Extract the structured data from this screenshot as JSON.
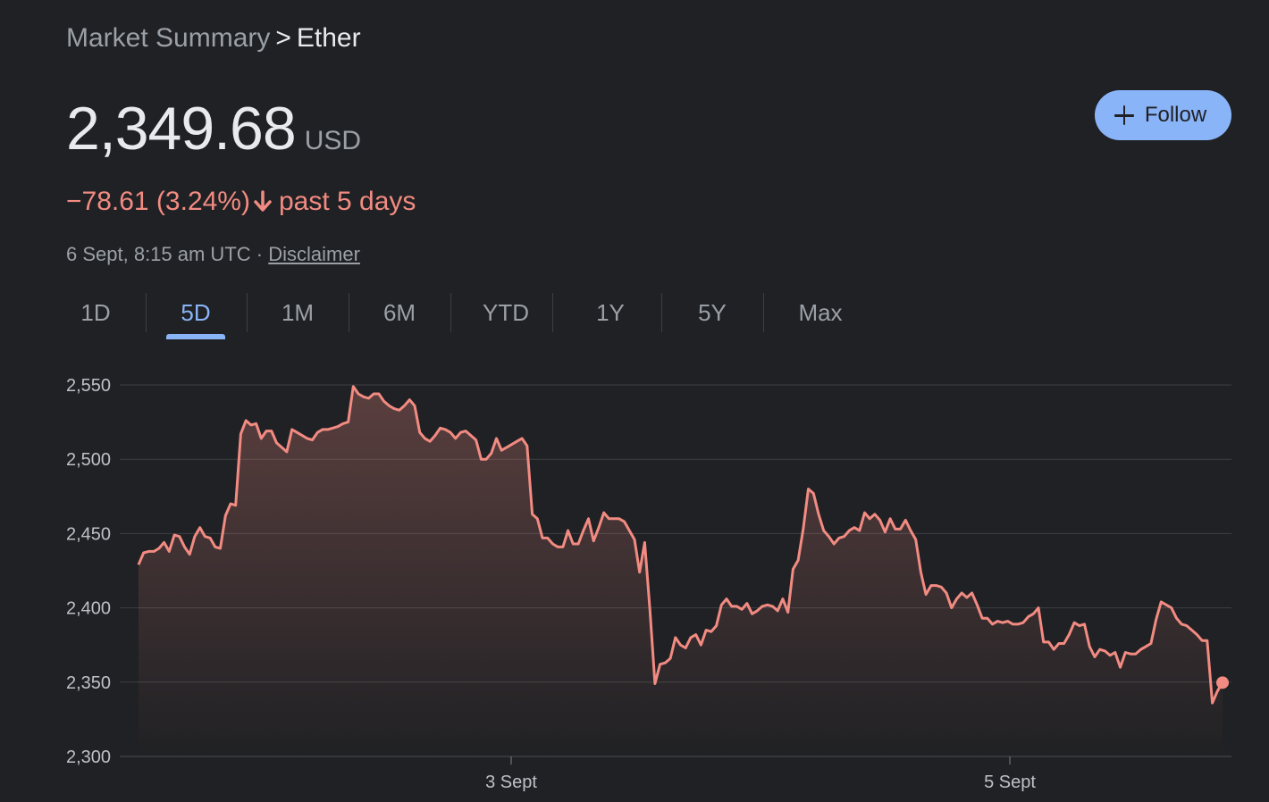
{
  "breadcrumb": {
    "parent": "Market Summary",
    "separator": ">",
    "current": "Ether"
  },
  "quote": {
    "price": "2,349.68",
    "currency": "USD",
    "change": "−78.61 (3.24%)",
    "period": "past 5 days",
    "timestamp": "6 Sept, 8:15 am UTC",
    "dot_separator": "·",
    "disclaimer": "Disclaimer"
  },
  "follow_button": {
    "label": "Follow",
    "icon": "plus-icon"
  },
  "range_tabs": [
    {
      "label": "1D",
      "active": false
    },
    {
      "label": "5D",
      "active": true
    },
    {
      "label": "1M",
      "active": false
    },
    {
      "label": "6M",
      "active": false
    },
    {
      "label": "YTD",
      "active": false
    },
    {
      "label": "1Y",
      "active": false
    },
    {
      "label": "5Y",
      "active": false
    },
    {
      "label": "Max",
      "active": false
    }
  ],
  "colors": {
    "background": "#202124",
    "line_down": "#f28b82",
    "accent": "#8ab4f8",
    "grid": "#3c4043"
  },
  "chart_data": {
    "type": "area",
    "title": "",
    "xlabel": "",
    "ylabel": "",
    "ylim": [
      2300,
      2550
    ],
    "y_ticks": [
      2550,
      2500,
      2450,
      2400,
      2350,
      2300
    ],
    "y_tick_labels": [
      "2,550",
      "2,500",
      "2,450",
      "2,400",
      "2,350",
      "2,300"
    ],
    "x_range": [
      "2 Sept 08:15",
      "6 Sept 08:15"
    ],
    "x_ticks": [
      "3 Sept",
      "5 Sept"
    ],
    "grid": true,
    "last_point_marker": true,
    "series": [
      {
        "values": [
          2429,
          2437,
          2438,
          2438,
          2440,
          2444,
          2438,
          2449,
          2448,
          2441,
          2436,
          2448,
          2454,
          2448,
          2447,
          2441,
          2440,
          2462,
          2470,
          2469,
          2517,
          2526,
          2523,
          2524,
          2514,
          2519,
          2519,
          2511,
          2508,
          2505,
          2520,
          2518,
          2516,
          2514,
          2513,
          2518,
          2520,
          2520,
          2521,
          2522,
          2524,
          2525,
          2549,
          2544,
          2542,
          2541,
          2544,
          2544,
          2539,
          2536,
          2534,
          2533,
          2536,
          2540,
          2536,
          2518,
          2514,
          2512,
          2516,
          2521,
          2520,
          2518,
          2514,
          2518,
          2519,
          2516,
          2513,
          2500,
          2500,
          2504,
          2514,
          2506,
          2508,
          2510,
          2512,
          2514,
          2509,
          2463,
          2460,
          2447,
          2447,
          2443,
          2441,
          2441,
          2452,
          2443,
          2443,
          2452,
          2460,
          2445,
          2454,
          2464,
          2460,
          2460,
          2460,
          2458,
          2452,
          2446,
          2424,
          2444,
          2399,
          2349,
          2362,
          2363,
          2366,
          2380,
          2375,
          2373,
          2380,
          2382,
          2375,
          2385,
          2384,
          2388,
          2402,
          2406,
          2401,
          2401,
          2399,
          2403,
          2396,
          2398,
          2401,
          2402,
          2401,
          2398,
          2406,
          2397,
          2426,
          2432,
          2453,
          2480,
          2477,
          2463,
          2452,
          2448,
          2443,
          2447,
          2448,
          2452,
          2454,
          2452,
          2464,
          2460,
          2463,
          2459,
          2451,
          2460,
          2453,
          2453,
          2459,
          2452,
          2446,
          2424,
          2409,
          2415,
          2415,
          2414,
          2410,
          2400,
          2406,
          2410,
          2407,
          2410,
          2402,
          2393,
          2393,
          2389,
          2391,
          2390,
          2391,
          2389,
          2389,
          2390,
          2394,
          2396,
          2400,
          2377,
          2377,
          2372,
          2376,
          2376,
          2382,
          2390,
          2388,
          2389,
          2374,
          2367,
          2372,
          2371,
          2368,
          2370,
          2360,
          2370,
          2369,
          2369,
          2372,
          2374,
          2376,
          2392,
          2404,
          2402,
          2400,
          2393,
          2389,
          2388,
          2385,
          2382,
          2378,
          2378,
          2336,
          2344,
          2349.68
        ]
      }
    ]
  }
}
